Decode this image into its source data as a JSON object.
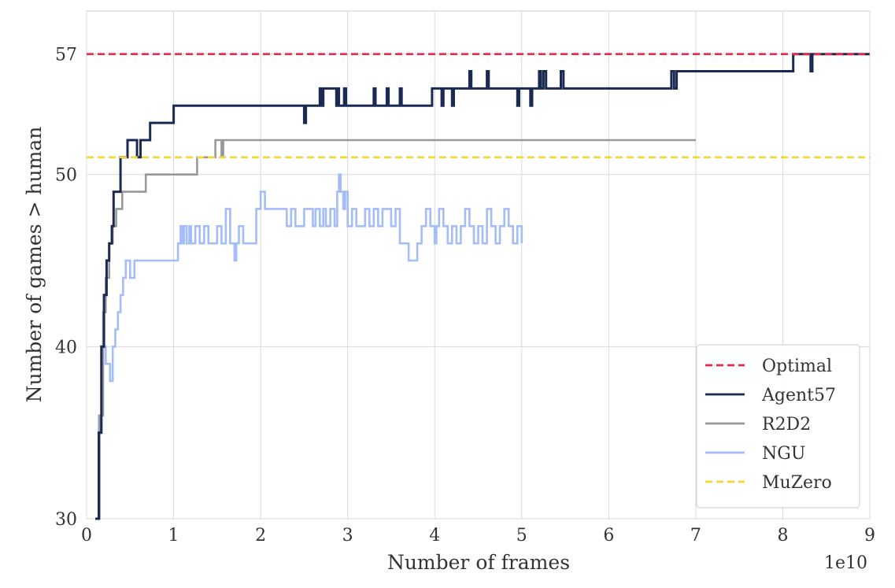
{
  "chart_data": {
    "type": "line",
    "title": "",
    "xlabel": "Number of frames",
    "ylabel": "Number of games > human",
    "x_scale_label": "1e10",
    "xlim": [
      0,
      9
    ],
    "ylim": [
      30,
      59.5
    ],
    "x_ticks": [
      0,
      1,
      2,
      3,
      4,
      5,
      6,
      7,
      8,
      9
    ],
    "x_tick_labels": [
      "0",
      "1",
      "2",
      "3",
      "4",
      "5",
      "6",
      "7",
      "8",
      "9"
    ],
    "y_ticks": [
      30,
      40,
      50,
      57
    ],
    "y_tick_labels": [
      "30",
      "40",
      "50",
      "57"
    ],
    "grid": true,
    "legend_position": "bottom-right",
    "series": [
      {
        "name": "Optimal",
        "color": "#e8294f",
        "style": "dashed",
        "x": [
          0,
          9
        ],
        "y": [
          57,
          57
        ]
      },
      {
        "name": "Agent57",
        "color": "#1b2a52",
        "style": "step",
        "x": [
          0.1,
          0.14,
          0.17,
          0.2,
          0.23,
          0.26,
          0.29,
          0.31,
          0.33,
          0.39,
          0.47,
          0.58,
          0.62,
          0.73,
          1.0,
          2.5,
          2.52,
          2.68,
          2.7,
          2.72,
          2.87,
          2.88,
          2.9,
          2.96,
          2.98,
          3.3,
          3.32,
          3.45,
          3.47,
          3.62,
          3.6,
          3.95,
          3.97,
          4.08,
          4.1,
          4.2,
          4.22,
          4.4,
          4.42,
          4.6,
          4.62,
          4.95,
          4.97,
          5.1,
          5.12,
          5.2,
          5.22,
          5.25,
          5.28,
          5.45,
          5.48,
          6.7,
          6.72,
          6.75,
          6.78,
          8.1,
          8.12,
          8.32,
          8.34,
          8.42,
          9.0
        ],
        "y": [
          30,
          35,
          40,
          43,
          45,
          46,
          47,
          49,
          49,
          51,
          52,
          51,
          52,
          53,
          54,
          53,
          54,
          55,
          54,
          55,
          54,
          55,
          54,
          55,
          54,
          55,
          54,
          55,
          54,
          55,
          54,
          54,
          55,
          54,
          55,
          54,
          55,
          56,
          55,
          56,
          55,
          54,
          55,
          54,
          55,
          56,
          55,
          56,
          55,
          56,
          55,
          55,
          56,
          55,
          56,
          56,
          57,
          56,
          57,
          57,
          57
        ]
      },
      {
        "name": "R2D2",
        "color": "#999999",
        "style": "step",
        "x": [
          0.1,
          0.15,
          0.19,
          0.22,
          0.26,
          0.3,
          0.34,
          0.41,
          0.47,
          0.68,
          1.25,
          1.27,
          1.45,
          1.48,
          1.55,
          1.57,
          7.0
        ],
        "y": [
          30,
          36,
          42,
          44,
          46,
          47,
          48,
          49,
          49,
          50,
          50,
          51,
          51,
          52,
          51,
          52,
          52
        ]
      },
      {
        "name": "NGU",
        "color": "#a4bcf7",
        "style": "step",
        "x": [
          0.1,
          0.14,
          0.18,
          0.22,
          0.27,
          0.3,
          0.33,
          0.36,
          0.39,
          0.42,
          0.45,
          0.5,
          0.55,
          0.62,
          0.68,
          0.73,
          0.78,
          1.05,
          1.08,
          1.1,
          1.12,
          1.15,
          1.18,
          1.2,
          1.25,
          1.3,
          1.35,
          1.4,
          1.5,
          1.55,
          1.6,
          1.65,
          1.7,
          1.72,
          1.75,
          1.8,
          1.95,
          2.0,
          2.05,
          2.3,
          2.35,
          2.4,
          2.5,
          2.6,
          2.63,
          2.68,
          2.72,
          2.75,
          2.8,
          2.85,
          2.88,
          2.9,
          2.92,
          2.95,
          2.97,
          3.0,
          3.05,
          3.1,
          3.15,
          3.2,
          3.25,
          3.3,
          3.35,
          3.4,
          3.45,
          3.5,
          3.55,
          3.6,
          3.65,
          3.7,
          3.8,
          3.85,
          3.9,
          3.95,
          4.0,
          4.02,
          4.05,
          4.1,
          4.15,
          4.2,
          4.25,
          4.3,
          4.35,
          4.4,
          4.45,
          4.5,
          4.55,
          4.6,
          4.65,
          4.7,
          4.75,
          4.8,
          4.85,
          4.9,
          4.95,
          5.0
        ],
        "y": [
          30,
          36,
          40,
          39,
          38,
          40,
          41,
          42,
          43,
          44,
          45,
          44,
          45,
          45,
          45,
          45,
          45,
          46,
          47,
          46,
          47,
          46,
          47,
          46,
          47,
          46,
          47,
          46,
          47,
          46,
          48,
          46,
          45,
          46,
          47,
          46,
          48,
          49,
          48,
          47,
          48,
          47,
          48,
          47,
          48,
          47,
          48,
          47,
          48,
          47,
          49,
          50,
          49,
          48,
          49,
          47,
          48,
          47,
          47,
          48,
          47,
          48,
          47,
          48,
          48,
          47,
          48,
          46,
          46,
          45,
          46,
          47,
          48,
          47,
          46,
          47,
          48,
          47,
          46,
          47,
          46,
          47,
          48,
          47,
          46,
          47,
          46,
          48,
          47,
          46,
          47,
          48,
          47,
          46,
          47,
          46
        ]
      },
      {
        "name": "MuZero",
        "color": "#f5d63a",
        "style": "dashed",
        "x": [
          0,
          9
        ],
        "y": [
          51,
          51
        ]
      }
    ]
  }
}
